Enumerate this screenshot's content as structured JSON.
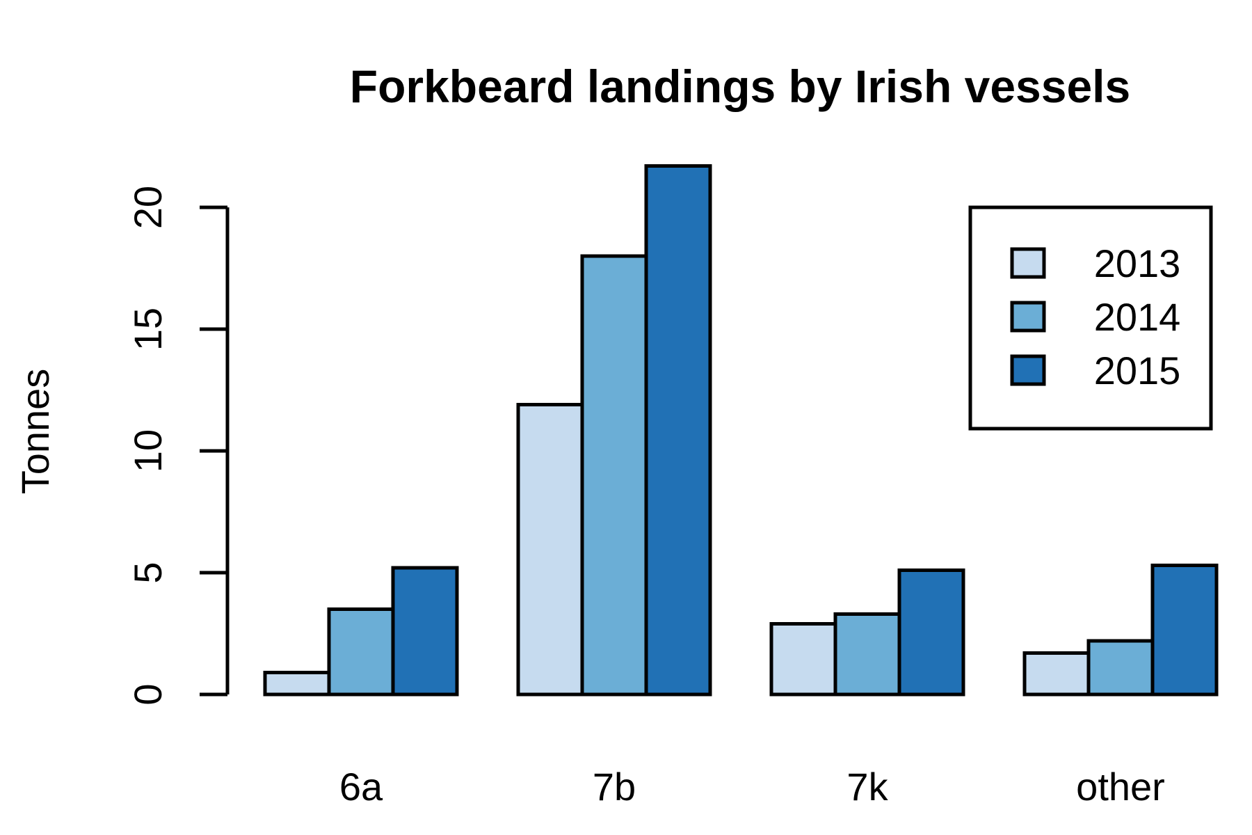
{
  "chart_data": {
    "type": "bar",
    "title": "Forkbeard landings by Irish vessels",
    "xlabel": "",
    "ylabel": "Tonnes",
    "categories": [
      "6a",
      "7b",
      "7k",
      "other"
    ],
    "series": [
      {
        "name": "2013",
        "values": [
          0.9,
          11.9,
          2.9,
          1.7
        ],
        "color": "#c6dbef"
      },
      {
        "name": "2014",
        "values": [
          3.5,
          18.0,
          3.3,
          2.2
        ],
        "color": "#6baed6"
      },
      {
        "name": "2015",
        "values": [
          5.2,
          21.7,
          5.1,
          5.3
        ],
        "color": "#2171b5"
      }
    ],
    "yticks": [
      "0",
      "5",
      "10",
      "15",
      "20"
    ],
    "ylim": [
      0,
      20
    ],
    "grid": false,
    "legend": {
      "position": "top-right",
      "entries": [
        "2013",
        "2014",
        "2015"
      ]
    }
  }
}
